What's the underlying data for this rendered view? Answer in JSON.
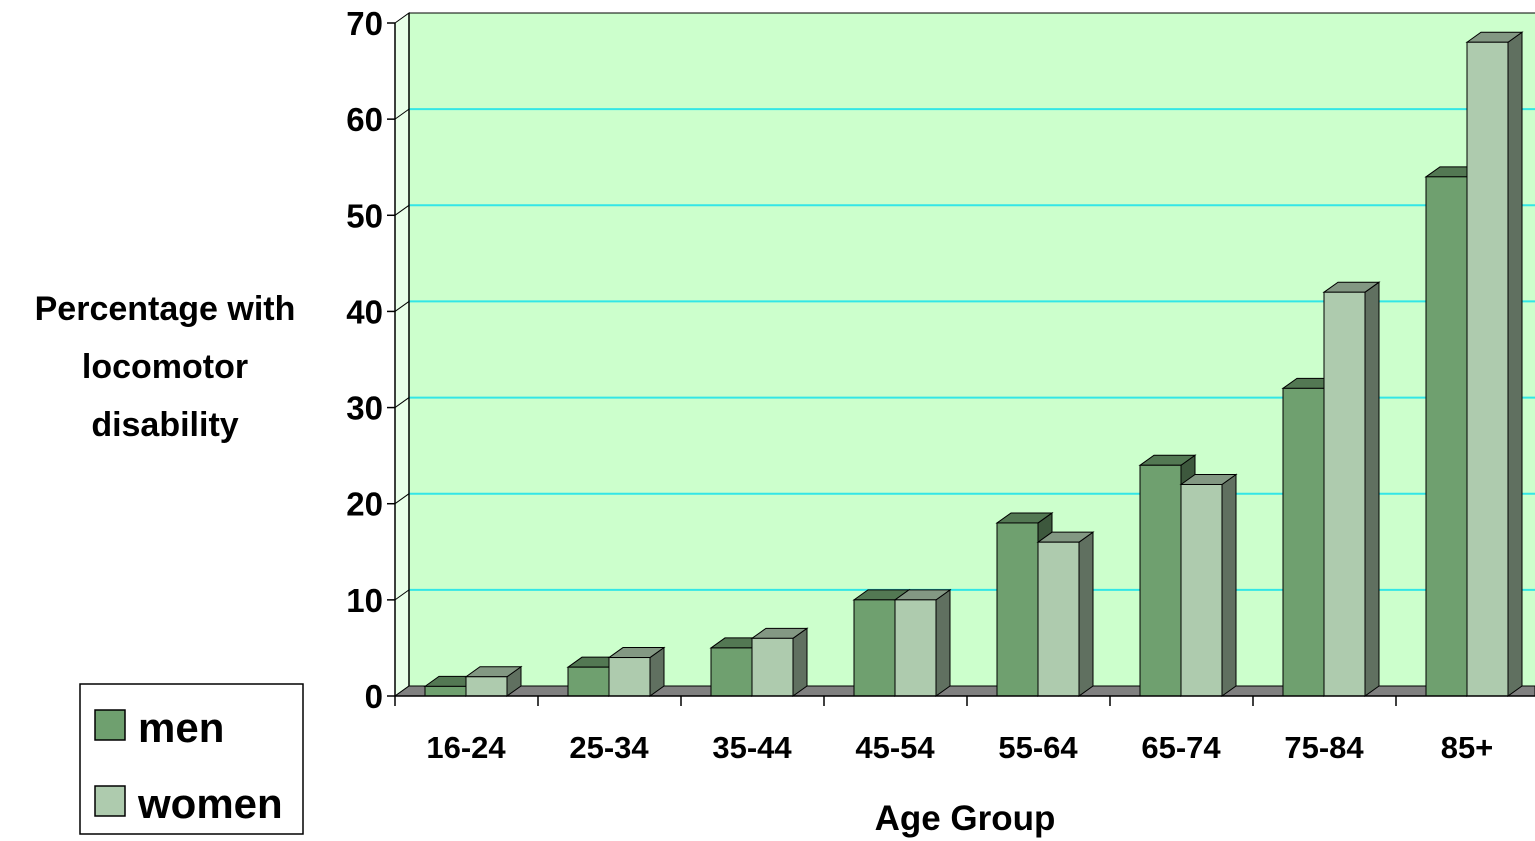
{
  "chart_data": {
    "type": "bar",
    "title": "",
    "xlabel": "Age Group",
    "ylabel_lines": [
      "Percentage with",
      "locomotor",
      "disability"
    ],
    "categories": [
      "16-24",
      "25-34",
      "35-44",
      "45-54",
      "55-64",
      "65-74",
      "75-84",
      "85+"
    ],
    "series": [
      {
        "name": "men",
        "values": [
          1,
          3,
          5,
          10,
          18,
          24,
          32,
          54
        ]
      },
      {
        "name": "women",
        "values": [
          2,
          4,
          6,
          10,
          16,
          22,
          42,
          68
        ]
      }
    ],
    "ylim": [
      0,
      70
    ],
    "yticks": [
      0,
      10,
      20,
      30,
      40,
      50,
      60,
      70
    ],
    "grid": true,
    "legend_position": "bottom-left",
    "colors": {
      "men": "#6fa06f",
      "women": "#aecbae",
      "plot_background": "#ccffcc",
      "gridline": "#33e6e6",
      "floor": "#808080"
    }
  }
}
